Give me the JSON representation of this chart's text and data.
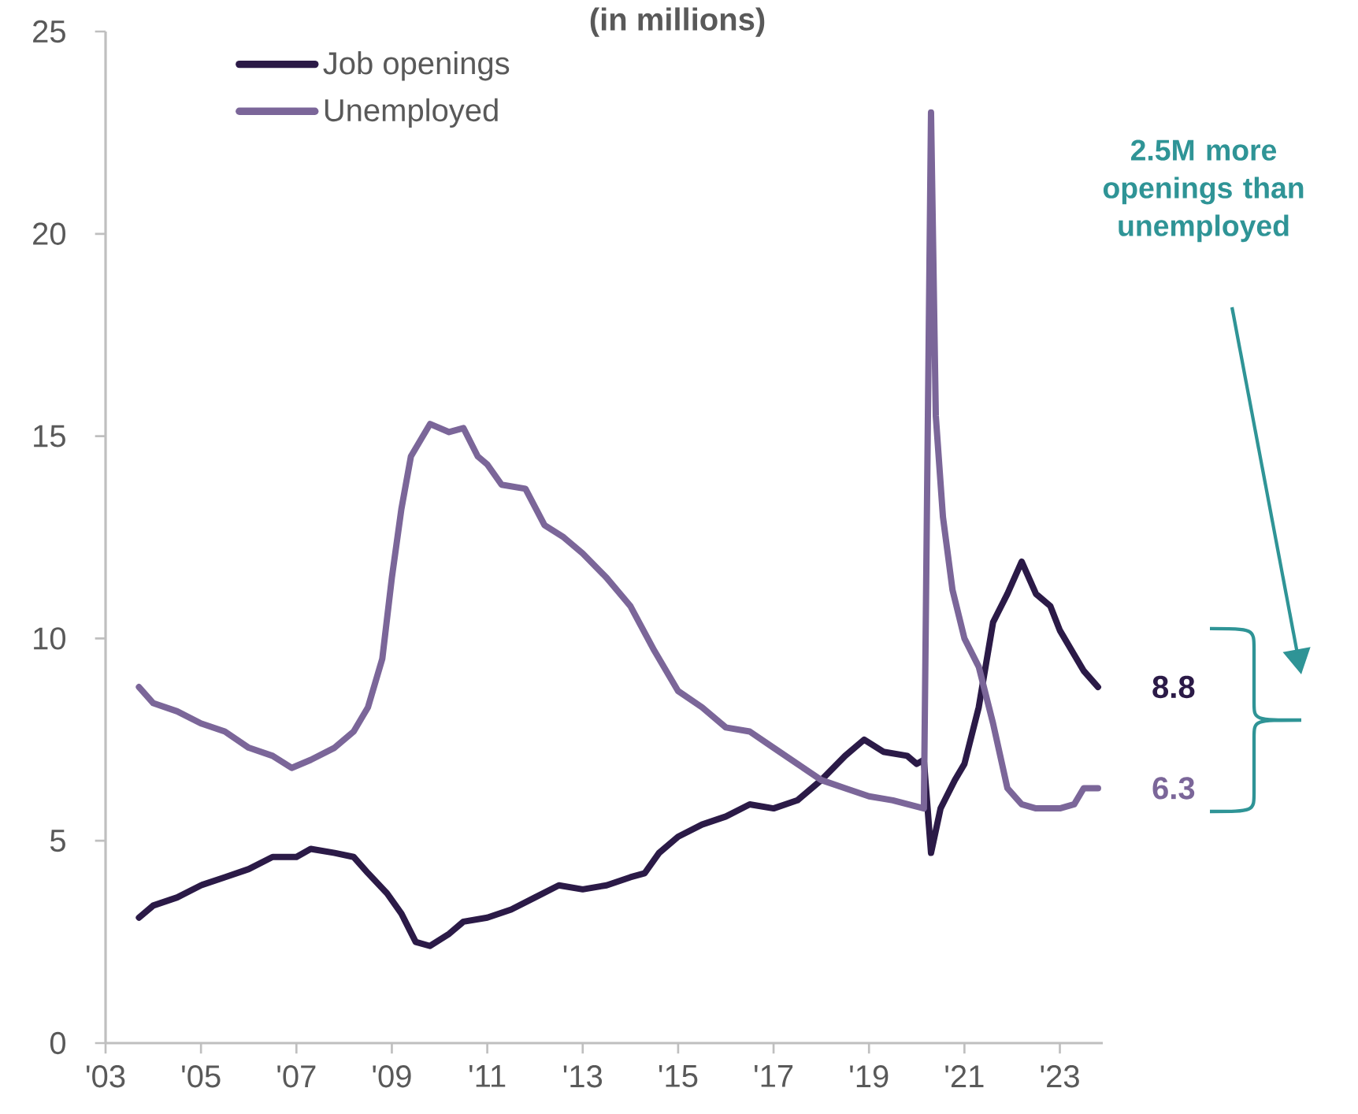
{
  "chart_data": {
    "type": "line",
    "title": "(in millions)",
    "xlim": [
      2003,
      2023.9
    ],
    "ylim": [
      0,
      25
    ],
    "xticks": [
      {
        "value": 2003,
        "label": "'03"
      },
      {
        "value": 2005,
        "label": "'05"
      },
      {
        "value": 2007,
        "label": "'07"
      },
      {
        "value": 2009,
        "label": "'09"
      },
      {
        "value": 2011,
        "label": "'11"
      },
      {
        "value": 2013,
        "label": "'13"
      },
      {
        "value": 2015,
        "label": "'15"
      },
      {
        "value": 2017,
        "label": "'17"
      },
      {
        "value": 2019,
        "label": "'19"
      },
      {
        "value": 2021,
        "label": "'21"
      },
      {
        "value": 2023,
        "label": "'23"
      }
    ],
    "yticks": [
      0,
      5,
      10,
      15,
      20,
      25
    ],
    "legend": "top left",
    "grid": false,
    "marker": "none",
    "line_style": "solid",
    "series": [
      {
        "name": "Job openings",
        "color": "#2b1a47",
        "x": [
          2003.7,
          2004.0,
          2004.5,
          2005.0,
          2005.5,
          2006.0,
          2006.5,
          2007.0,
          2007.3,
          2007.8,
          2008.2,
          2008.5,
          2008.9,
          2009.2,
          2009.5,
          2009.8,
          2010.2,
          2010.5,
          2011.0,
          2011.5,
          2012.0,
          2012.5,
          2013.0,
          2013.5,
          2014.0,
          2014.3,
          2014.6,
          2015.0,
          2015.5,
          2016.0,
          2016.5,
          2017.0,
          2017.5,
          2018.0,
          2018.5,
          2018.9,
          2019.3,
          2019.8,
          2020.0,
          2020.15,
          2020.3,
          2020.5,
          2020.8,
          2021.0,
          2021.3,
          2021.6,
          2021.9,
          2022.2,
          2022.5,
          2022.8,
          2023.0,
          2023.3,
          2023.5,
          2023.8
        ],
        "values": [
          3.1,
          3.4,
          3.6,
          3.9,
          4.1,
          4.3,
          4.6,
          4.6,
          4.8,
          4.7,
          4.6,
          4.2,
          3.7,
          3.2,
          2.5,
          2.4,
          2.7,
          3.0,
          3.1,
          3.3,
          3.6,
          3.9,
          3.8,
          3.9,
          4.1,
          4.2,
          4.7,
          5.1,
          5.4,
          5.6,
          5.9,
          5.8,
          6.0,
          6.5,
          7.1,
          7.5,
          7.2,
          7.1,
          6.9,
          7.0,
          4.7,
          5.8,
          6.5,
          6.9,
          8.3,
          10.4,
          11.1,
          11.9,
          11.1,
          10.8,
          10.2,
          9.6,
          9.2,
          8.8
        ]
      },
      {
        "name": "Unemployed",
        "color": "#7b6699",
        "x": [
          2003.7,
          2004.0,
          2004.5,
          2005.0,
          2005.5,
          2006.0,
          2006.5,
          2006.9,
          2007.3,
          2007.8,
          2008.2,
          2008.5,
          2008.8,
          2009.0,
          2009.2,
          2009.4,
          2009.8,
          2010.2,
          2010.5,
          2010.8,
          2011.0,
          2011.3,
          2011.8,
          2012.2,
          2012.6,
          2013.0,
          2013.5,
          2014.0,
          2014.5,
          2015.0,
          2015.5,
          2016.0,
          2016.5,
          2017.0,
          2017.5,
          2018.0,
          2018.5,
          2019.0,
          2019.5,
          2020.15,
          2020.3,
          2020.4,
          2020.55,
          2020.75,
          2021.0,
          2021.3,
          2021.6,
          2021.9,
          2022.2,
          2022.5,
          2023.0,
          2023.3,
          2023.5,
          2023.8
        ],
        "values": [
          8.8,
          8.4,
          8.2,
          7.9,
          7.7,
          7.3,
          7.1,
          6.8,
          7.0,
          7.3,
          7.7,
          8.3,
          9.5,
          11.5,
          13.2,
          14.5,
          15.3,
          15.1,
          15.2,
          14.5,
          14.3,
          13.8,
          13.7,
          12.8,
          12.5,
          12.1,
          11.5,
          10.8,
          9.7,
          8.7,
          8.3,
          7.8,
          7.7,
          7.3,
          6.9,
          6.5,
          6.3,
          6.1,
          6.0,
          5.8,
          23.0,
          15.5,
          13.0,
          11.2,
          10.0,
          9.3,
          7.9,
          6.3,
          5.9,
          5.8,
          5.8,
          5.9,
          6.3,
          6.3
        ]
      }
    ],
    "annotations": [
      "2.5M more openings than unemployed",
      {
        "text": "8.8",
        "x": 2023.8,
        "y": 8.8
      },
      {
        "text": "6.3",
        "x": 2023.8,
        "y": 6.3
      }
    ]
  }
}
